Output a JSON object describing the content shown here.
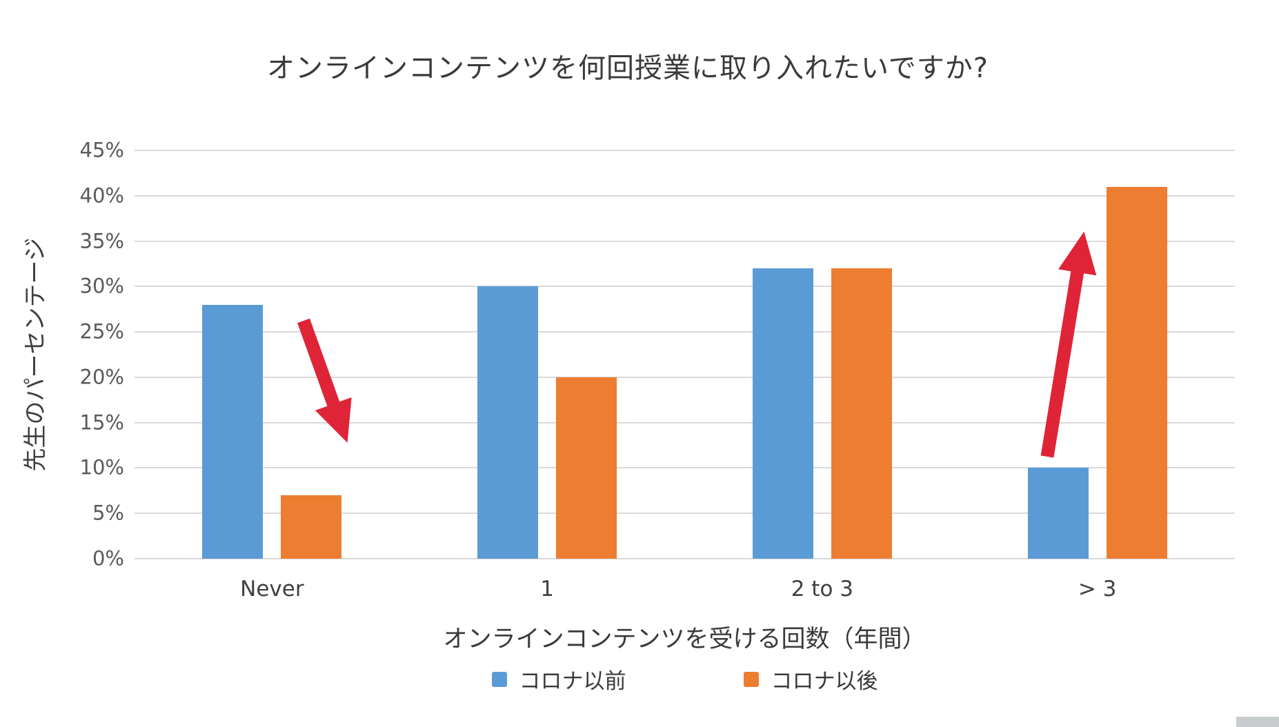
{
  "title": "オンラインコンテンツを何回授業に取り入れたいですか?",
  "chart_data": {
    "type": "bar",
    "title": "オンラインコンテンツを何回授業に取り入れたいですか?",
    "categories": [
      "Never",
      "1",
      "2 to 3",
      "> 3"
    ],
    "series": [
      {
        "name": "コロナ以前",
        "color": "#5B9BD5",
        "values": [
          28,
          30,
          32,
          10
        ]
      },
      {
        "name": "コロナ以後",
        "color": "#ED7D31",
        "values": [
          7,
          20,
          32,
          41
        ]
      }
    ],
    "xlabel": "オンラインコンテンツを受ける回数（年間）",
    "ylabel": "先生のパーセンテージ",
    "ylim": [
      0,
      45
    ],
    "ytick_step": 5,
    "ytick_suffix": "%",
    "grid": true,
    "legend_position": "bottom",
    "annotations": [
      {
        "name": "decrease-arrow",
        "direction": "down",
        "target_category": "Never",
        "color": "#E02438"
      },
      {
        "name": "increase-arrow",
        "direction": "up",
        "target_category": "> 3",
        "color": "#E02438"
      }
    ]
  }
}
